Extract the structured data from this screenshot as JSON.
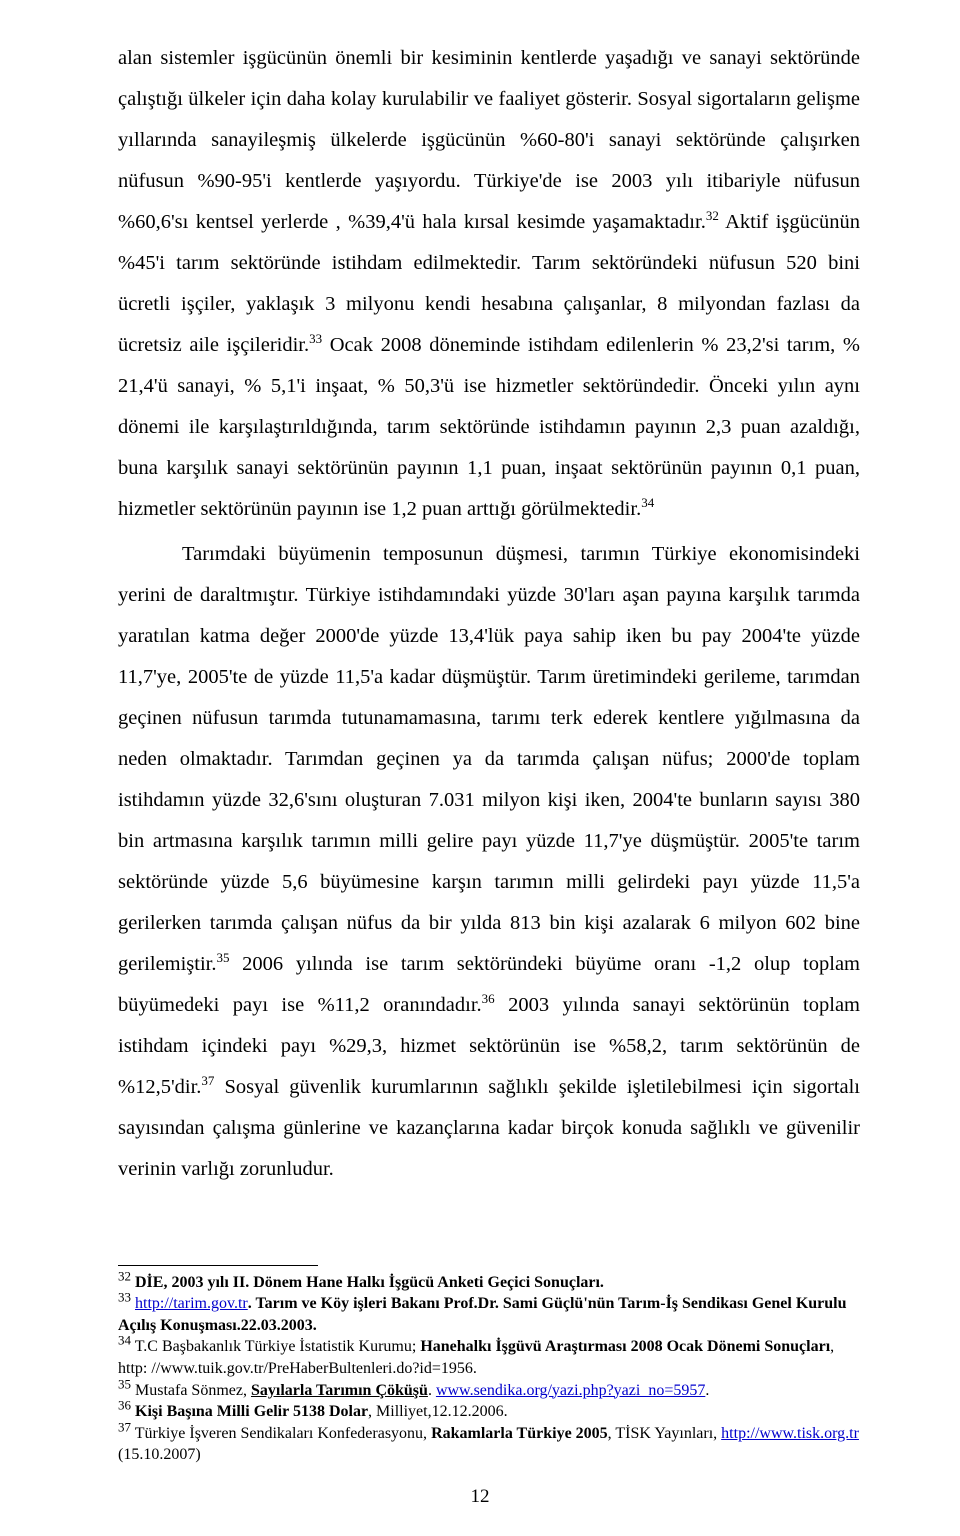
{
  "paragraphs": {
    "p1": "alan sistemler işgücünün önemli bir kesiminin kentlerde yaşadığı ve sanayi sektöründe çalıştığı ülkeler için daha kolay kurulabilir ve faaliyet gösterir. Sosyal sigortaların gelişme yıllarında sanayileşmiş ülkelerde işgücünün %60-80'i sanayi sektöründe çalışırken nüfusun %90-95'i kentlerde yaşıyordu. Türkiye'de ise 2003 yılı itibariyle nüfusun %60,6'sı kentsel yerlerde , %39,4'ü hala kırsal kesimde yaşamaktadır.",
    "p1_sup": "32",
    "p1b": " Aktif işgücünün %45'i tarım sektöründe istihdam edilmektedir. Tarım sektöründeki nüfusun 520 bini ücretli işçiler, yaklaşık 3 milyonu kendi hesabına çalışanlar, 8 milyondan fazlası da ücretsiz aile işçileridir.",
    "p1_sup2": "33",
    "p1c": " Ocak 2008 döneminde istihdam edilenlerin % 23,2'si tarım, % 21,4'ü sanayi, % 5,1'i inşaat, % 50,3'ü ise hizmetler sektöründedir. Önceki yılın aynı dönemi ile karşılaştırıldığında, tarım sektöründe istihdamın payının 2,3 puan azaldığı, buna karşılık sanayi sektörünün payının 1,1 puan, inşaat sektörünün payının 0,1 puan, hizmetler sektörünün payının ise 1,2 puan arttığı görülmektedir.",
    "p1_sup3": "34",
    "p2a": "Tarımdaki büyümenin temposunun düşmesi, tarımın Türkiye ekonomisindeki yerini de daraltmıştır. Türkiye istihdamındaki yüzde 30'ları aşan payına karşılık tarımda yaratılan katma değer 2000'de yüzde 13,4'lük paya sahip iken bu pay 2004'te yüzde 11,7'ye, 2005'te de yüzde 11,5'a kadar düşmüştür. Tarım üretimindeki gerileme, tarımdan geçinen nüfusun tarımda tutunamamasına, tarımı terk ederek kentlere yığılmasına da neden olmaktadır. Tarımdan geçinen ya da tarımda çalışan nüfus; 2000'de toplam istihdamın yüzde 32,6'sını oluşturan 7.031 milyon kişi iken, 2004'te bunların sayısı 380 bin artmasına karşılık tarımın milli gelire payı yüzde 11,7'ye düşmüştür. 2005'te tarım sektöründe yüzde 5,6 büyümesine karşın tarımın milli gelirdeki payı yüzde 11,5'a gerilerken tarımda çalışan nüfus da bir yılda 813 bin kişi azalarak 6 milyon 602 bine gerilemiştir.",
    "p2_sup1": "35",
    "p2b": " 2006 yılında ise tarım sektöründeki büyüme oranı -1,2 olup toplam büyümedeki payı ise %11,2 oranındadır.",
    "p2_sup2": "36",
    "p2c": " 2003 yılında sanayi sektörünün toplam istihdam içindeki payı %29,3, hizmet sektörünün ise %58,2, tarım sektörünün de %12,5'dir.",
    "p2_sup3": "37",
    "p2d": " Sosyal güvenlik kurumlarının sağlıklı şekilde işletilebilmesi için sigortalı sayısından çalışma günlerine ve kazançlarına kadar birçok konuda sağlıklı ve güvenilir verinin varlığı zorunludur."
  },
  "footnotes": {
    "f32_num": "32",
    "f32_text": " DİE, 2003 yılı II. Dönem Hane Halkı İşgücü Anketi Geçici Sonuçları.",
    "f33_num": "33",
    "f33_link": "http://tarim.gov.tr",
    "f33_text": ". Tarım ve Köy işleri Bakanı Prof.Dr. Sami Güçlü'nün Tarım-İş Sendikası Genel Kurulu Açılış Konuşması.22.03.2003.",
    "f34_num": "34",
    "f34_text_a": " T.C Başbakanlık Türkiye İstatistik Kurumu; ",
    "f34_bold": "Hanehalkı İşgüvü Araştırması 2008 Ocak Dönemi Sonuçları",
    "f34_text_b": ", http: //www.tuik.gov.tr/PreHaberBultenleri.do?id=1956.",
    "f35_num": "35",
    "f35_text_a": " Mustafa Sönmez, ",
    "f35_bold": "Sayılarla Tarımın Çöküşü",
    "f35_text_b": ". ",
    "f35_link": "www.sendika.org/yazi.php?yazi_no=5957",
    "f35_text_c": ".",
    "f36_num": "36",
    "f36_bold": " Kişi Başına Milli Gelir 5138 Dolar",
    "f36_text": ", Milliyet,12.12.2006.",
    "f37_num": "37",
    "f37_text_a": " Türkiye İşveren Sendikaları Konfederasyonu, ",
    "f37_bold": "Rakamlarla Türkiye 2005",
    "f37_text_b": ", TİSK Yayınları, ",
    "f37_link": "http://www.tisk.org.tr",
    "f37_text_c": " (15.10.2007)"
  },
  "pagenum": "12"
}
